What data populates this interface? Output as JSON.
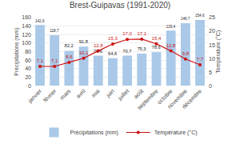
{
  "chart_data": {
    "type": "bar",
    "title": "Brest-Guipavas (1991-2020)",
    "categories": [
      "janvier",
      "février",
      "mars",
      "avril",
      "mai",
      "juin",
      "juillet",
      "août",
      "septembre",
      "octobre",
      "novembre",
      "décembre"
    ],
    "series": [
      {
        "name": "Précipitations (mm)",
        "type": "bar",
        "color": "#aac9e8",
        "values": [
          142.6,
          118.7,
          82.2,
          91.8,
          70.6,
          64.6,
          70.7,
          75.3,
          78.6,
          129.4,
          146.7,
          154.6
        ],
        "value_labels": [
          "142,6",
          "118,7",
          "82,2",
          "91,8",
          "70,6",
          "64,6",
          "70,7",
          "75,3",
          "78,6",
          "129,4",
          "146,7",
          "154,6"
        ]
      },
      {
        "name": "Température (°C)",
        "type": "line",
        "axis": "y2",
        "color": "#cc1111",
        "marker": "circle",
        "values": [
          7.1,
          7.1,
          8.6,
          10.1,
          12.8,
          15.3,
          17.0,
          17.1,
          15.4,
          12.8,
          9.8,
          7.7
        ],
        "value_labels": [
          "7,1",
          "7,1",
          "8,6",
          "10,1",
          "12,8",
          "15,3",
          "17,0",
          "17,1",
          "15,4",
          "12,8",
          "9,8",
          "7,7"
        ]
      }
    ],
    "ylabel": "Précipitations (mm)",
    "y2label": "Température (°C)",
    "ylim": [
      0,
      160
    ],
    "yticks": [
      0,
      20,
      40,
      60,
      80,
      100,
      120,
      140,
      160
    ],
    "y2lim": [
      0,
      25
    ],
    "y2ticks": [
      0,
      5,
      10,
      15,
      20,
      25
    ],
    "grid": true,
    "legend": "bottom",
    "data_labels": true
  }
}
